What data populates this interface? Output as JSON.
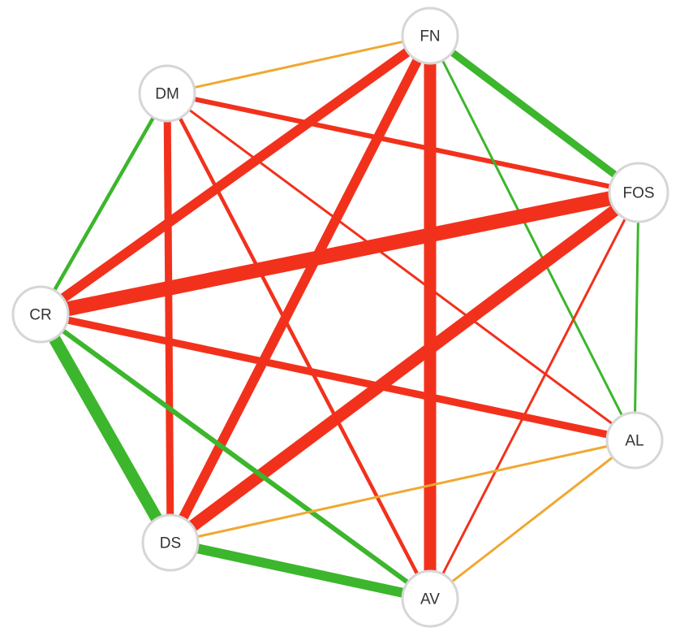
{
  "colors": {
    "negative": "#f2311c",
    "positive": "#3cb62c",
    "weak": "#f0a830"
  },
  "nodes": [
    {
      "id": "FN",
      "label": "FN"
    },
    {
      "id": "DM",
      "label": "DM"
    },
    {
      "id": "FOS",
      "label": "FOS"
    },
    {
      "id": "CR",
      "label": "CR"
    },
    {
      "id": "AL",
      "label": "AL"
    },
    {
      "id": "DS",
      "label": "DS"
    },
    {
      "id": "AV",
      "label": "AV"
    }
  ],
  "edges": [
    {
      "source": "DM",
      "target": "FN",
      "type": "weak",
      "strength": 1
    },
    {
      "source": "DM",
      "target": "FOS",
      "type": "negative",
      "strength": 2
    },
    {
      "source": "DM",
      "target": "AL",
      "type": "negative",
      "strength": 1
    },
    {
      "source": "DM",
      "target": "AV",
      "type": "negative",
      "strength": 1.5
    },
    {
      "source": "DM",
      "target": "DS",
      "type": "negative",
      "strength": 3
    },
    {
      "source": "DM",
      "target": "CR",
      "type": "positive",
      "strength": 1.5
    },
    {
      "source": "FN",
      "target": "FOS",
      "type": "positive",
      "strength": 3
    },
    {
      "source": "FN",
      "target": "AL",
      "type": "positive",
      "strength": 1
    },
    {
      "source": "FN",
      "target": "AV",
      "type": "negative",
      "strength": 5
    },
    {
      "source": "FN",
      "target": "DS",
      "type": "negative",
      "strength": 4
    },
    {
      "source": "FN",
      "target": "CR",
      "type": "negative",
      "strength": 4
    },
    {
      "source": "FOS",
      "target": "AL",
      "type": "positive",
      "strength": 1
    },
    {
      "source": "FOS",
      "target": "AV",
      "type": "negative",
      "strength": 1
    },
    {
      "source": "FOS",
      "target": "DS",
      "type": "negative",
      "strength": 5
    },
    {
      "source": "FOS",
      "target": "CR",
      "type": "negative",
      "strength": 6
    },
    {
      "source": "CR",
      "target": "AL",
      "type": "negative",
      "strength": 3
    },
    {
      "source": "CR",
      "target": "DS",
      "type": "positive",
      "strength": 5
    },
    {
      "source": "CR",
      "target": "AV",
      "type": "positive",
      "strength": 2
    },
    {
      "source": "AL",
      "target": "DS",
      "type": "weak",
      "strength": 1
    },
    {
      "source": "AL",
      "target": "AV",
      "type": "weak",
      "strength": 1
    },
    {
      "source": "DS",
      "target": "AV",
      "type": "positive",
      "strength": 4
    }
  ]
}
